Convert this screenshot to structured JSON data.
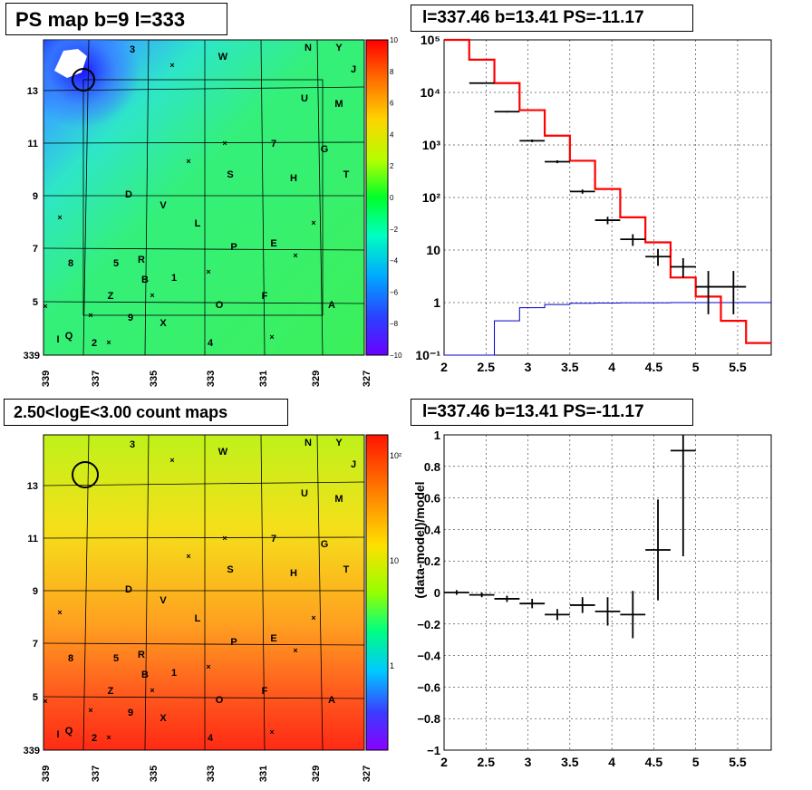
{
  "titles": {
    "map1": "PS map b=9 l=333",
    "spectrum": "l=337.46 b=13.41 PS=-11.17",
    "map2": "2.50<logE<3.00 count maps",
    "residual": "l=337.46 b=13.41 PS=-11.17"
  },
  "map_axes": {
    "x_ticks": [
      "339",
      "337",
      "335",
      "333",
      "331",
      "329",
      "327"
    ],
    "x_ticks_extra": "339",
    "y_ticks": [
      "13",
      "11",
      "9",
      "7",
      "5",
      "3"
    ]
  },
  "source_labels": [
    "3",
    "W",
    "N",
    "Y",
    "J",
    "U",
    "M",
    "7",
    "G",
    "S",
    "H",
    "T",
    "D",
    "V",
    "L",
    "P",
    "E",
    "8",
    "5",
    "R",
    "B",
    "1",
    "Z",
    "O",
    "F",
    "A",
    "9",
    "X",
    "I",
    "Q",
    "2",
    "4"
  ],
  "colorbar1": {
    "labels": [
      "10",
      "8",
      "6",
      "4",
      "2",
      "0",
      "−2",
      "−4",
      "−6",
      "−8",
      "−10"
    ]
  },
  "colorbar2": {
    "labels": [
      "10²",
      "10",
      "1"
    ]
  },
  "chart_data": [
    {
      "type": "line",
      "panel": "spectrum",
      "title": "l=337.46 b=13.41 PS=-11.17",
      "x_ticks": [
        "2",
        "2.5",
        "3",
        "3.5",
        "4",
        "4.5",
        "5",
        "5.5"
      ],
      "y_ticks": [
        "10⁻¹",
        "1",
        "10",
        "10²",
        "10³",
        "10⁴",
        "10⁵"
      ],
      "xlim": [
        2.0,
        5.9
      ],
      "ylim": [
        0.1,
        100000
      ],
      "yscale": "log",
      "grid": true,
      "data_points": {
        "x": [
          2.45,
          2.75,
          3.05,
          3.35,
          3.65,
          3.95,
          4.25,
          4.55,
          4.85,
          5.15,
          5.45
        ],
        "xerr": [
          0.15,
          0.15,
          0.15,
          0.15,
          0.15,
          0.15,
          0.15,
          0.15,
          0.15,
          0.15,
          0.15
        ],
        "y": [
          15000,
          4300,
          1200,
          480,
          130,
          37,
          16,
          7.5,
          4.8,
          2.0,
          2.0
        ],
        "ylo": [
          14500,
          4150,
          1130,
          450,
          118,
          31,
          12,
          5.0,
          3.0,
          0.6,
          0.6
        ],
        "yhi": [
          15500,
          4450,
          1270,
          510,
          142,
          43,
          20,
          10.5,
          7.0,
          4.0,
          4.0
        ]
      },
      "model_red": {
        "edges": [
          2.0,
          2.3,
          2.6,
          2.9,
          3.2,
          3.5,
          3.8,
          4.1,
          4.4,
          4.7,
          5.0,
          5.3,
          5.6,
          5.9
        ],
        "values": [
          100000,
          42000,
          15000,
          4600,
          1500,
          500,
          145,
          42,
          14,
          3,
          1.3,
          0.45,
          0.17
        ]
      },
      "model_blue": {
        "edges": [
          2.0,
          2.3,
          2.6,
          2.9,
          3.2,
          3.5,
          3.8,
          4.1,
          4.4,
          4.7,
          5.0,
          5.3,
          5.6,
          5.9
        ],
        "values": [
          0.001,
          0.001,
          0.45,
          0.8,
          0.92,
          0.97,
          0.98,
          0.99,
          0.99,
          1.0,
          1.0,
          1.0,
          1.0
        ]
      }
    },
    {
      "type": "scatter",
      "panel": "residual",
      "title": "l=337.46 b=13.41 PS=-11.17",
      "ylabel": "(data-model)/model",
      "x_ticks": [
        "2",
        "2.5",
        "3",
        "3.5",
        "4",
        "4.5",
        "5",
        "5.5"
      ],
      "y_ticks": [
        "1",
        "0.8",
        "0.6",
        "0.4",
        "0.2",
        "0",
        "−0.2",
        "−0.4",
        "−0.6",
        "−0.8",
        "−1"
      ],
      "xlim": [
        2.0,
        5.9
      ],
      "ylim": [
        -1.0,
        1.0
      ],
      "grid": true,
      "points": {
        "x": [
          2.15,
          2.45,
          2.75,
          3.05,
          3.35,
          3.65,
          3.95,
          4.25,
          4.55,
          4.85
        ],
        "y": [
          0.0,
          -0.015,
          -0.04,
          -0.07,
          -0.14,
          -0.08,
          -0.12,
          -0.14,
          0.27,
          0.9
        ],
        "yerr": [
          0.015,
          0.015,
          0.02,
          0.03,
          0.035,
          0.05,
          0.09,
          0.15,
          0.32,
          0.67
        ]
      }
    }
  ]
}
